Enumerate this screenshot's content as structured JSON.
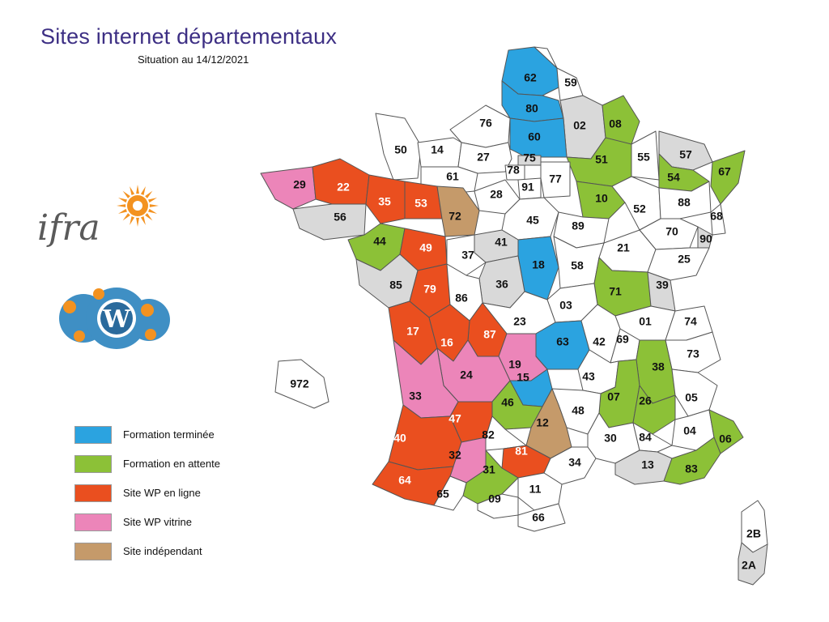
{
  "title": "Sites internet départementaux",
  "subtitle": "Situation au 14/12/2021",
  "colors": {
    "formation_terminee": "#2ba3e0",
    "formation_attente": "#8cc137",
    "site_wp_en_ligne": "#ea4f1f",
    "site_wp_vitrine": "#ec85b9",
    "site_independant": "#c59a6a",
    "unknown_grey": "#d9d9d9",
    "none_white": "#ffffff",
    "title_color": "#3d2f84"
  },
  "legend": [
    {
      "key": "formation_terminee",
      "label": "Formation terminée"
    },
    {
      "key": "formation_attente",
      "label": "Formation en attente"
    },
    {
      "key": "site_wp_en_ligne",
      "label": "Site WP en ligne"
    },
    {
      "key": "site_wp_vitrine",
      "label": "Site WP vitrine"
    },
    {
      "key": "site_independant",
      "label": "Site indépendant"
    }
  ],
  "logos": {
    "ifra": "ifra",
    "ifra_icon": "sun-icon",
    "wordpress_icon": "wordpress-gear-icon"
  },
  "departments": [
    {
      "code": "62",
      "status": "formation_terminee"
    },
    {
      "code": "59",
      "status": "none_white"
    },
    {
      "code": "80",
      "status": "formation_terminee"
    },
    {
      "code": "02",
      "status": "unknown_grey"
    },
    {
      "code": "08",
      "status": "formation_attente"
    },
    {
      "code": "76",
      "status": "none_white"
    },
    {
      "code": "60",
      "status": "formation_terminee"
    },
    {
      "code": "50",
      "status": "none_white"
    },
    {
      "code": "14",
      "status": "none_white"
    },
    {
      "code": "27",
      "status": "none_white"
    },
    {
      "code": "75",
      "status": "unknown_grey"
    },
    {
      "code": "51",
      "status": "formation_attente"
    },
    {
      "code": "55",
      "status": "none_white"
    },
    {
      "code": "57",
      "status": "unknown_grey"
    },
    {
      "code": "67",
      "status": "formation_attente"
    },
    {
      "code": "54",
      "status": "formation_attente"
    },
    {
      "code": "78",
      "status": "none_white"
    },
    {
      "code": "77",
      "status": "none_white"
    },
    {
      "code": "61",
      "status": "none_white"
    },
    {
      "code": "91",
      "status": "none_white"
    },
    {
      "code": "29",
      "status": "site_wp_vitrine"
    },
    {
      "code": "22",
      "status": "site_wp_en_ligne"
    },
    {
      "code": "35",
      "status": "site_wp_en_ligne"
    },
    {
      "code": "53",
      "status": "site_wp_en_ligne"
    },
    {
      "code": "72",
      "status": "site_independant"
    },
    {
      "code": "28",
      "status": "none_white"
    },
    {
      "code": "10",
      "status": "formation_attente"
    },
    {
      "code": "52",
      "status": "none_white"
    },
    {
      "code": "88",
      "status": "none_white"
    },
    {
      "code": "68",
      "status": "none_white"
    },
    {
      "code": "56",
      "status": "unknown_grey"
    },
    {
      "code": "45",
      "status": "none_white"
    },
    {
      "code": "89",
      "status": "none_white"
    },
    {
      "code": "70",
      "status": "none_white"
    },
    {
      "code": "90",
      "status": "unknown_grey"
    },
    {
      "code": "44",
      "status": "formation_attente"
    },
    {
      "code": "49",
      "status": "site_wp_en_ligne"
    },
    {
      "code": "41",
      "status": "unknown_grey"
    },
    {
      "code": "21",
      "status": "none_white"
    },
    {
      "code": "25",
      "status": "none_white"
    },
    {
      "code": "37",
      "status": "none_white"
    },
    {
      "code": "18",
      "status": "formation_terminee"
    },
    {
      "code": "58",
      "status": "none_white"
    },
    {
      "code": "85",
      "status": "unknown_grey"
    },
    {
      "code": "79",
      "status": "site_wp_en_ligne"
    },
    {
      "code": "36",
      "status": "unknown_grey"
    },
    {
      "code": "71",
      "status": "formation_attente"
    },
    {
      "code": "39",
      "status": "unknown_grey"
    },
    {
      "code": "86",
      "status": "none_white"
    },
    {
      "code": "03",
      "status": "none_white"
    },
    {
      "code": "01",
      "status": "none_white"
    },
    {
      "code": "74",
      "status": "none_white"
    },
    {
      "code": "17",
      "status": "site_wp_en_ligne"
    },
    {
      "code": "23",
      "status": "none_white"
    },
    {
      "code": "87",
      "status": "site_wp_en_ligne"
    },
    {
      "code": "16",
      "status": "site_wp_en_ligne"
    },
    {
      "code": "63",
      "status": "formation_terminee"
    },
    {
      "code": "42",
      "status": "none_white"
    },
    {
      "code": "69",
      "status": "none_white"
    },
    {
      "code": "73",
      "status": "none_white"
    },
    {
      "code": "19",
      "status": "site_wp_vitrine"
    },
    {
      "code": "38",
      "status": "formation_attente"
    },
    {
      "code": "24",
      "status": "site_wp_vitrine"
    },
    {
      "code": "15",
      "status": "formation_terminee"
    },
    {
      "code": "43",
      "status": "none_white"
    },
    {
      "code": "33",
      "status": "site_wp_vitrine"
    },
    {
      "code": "07",
      "status": "formation_attente"
    },
    {
      "code": "26",
      "status": "formation_attente"
    },
    {
      "code": "05",
      "status": "none_white"
    },
    {
      "code": "46",
      "status": "formation_attente"
    },
    {
      "code": "48",
      "status": "none_white"
    },
    {
      "code": "47",
      "status": "site_wp_en_ligne"
    },
    {
      "code": "12",
      "status": "site_independant"
    },
    {
      "code": "04",
      "status": "none_white"
    },
    {
      "code": "06",
      "status": "formation_attente"
    },
    {
      "code": "40",
      "status": "site_wp_en_ligne"
    },
    {
      "code": "82",
      "status": "none_white"
    },
    {
      "code": "30",
      "status": "none_white"
    },
    {
      "code": "84",
      "status": "none_white"
    },
    {
      "code": "32",
      "status": "site_wp_vitrine"
    },
    {
      "code": "81",
      "status": "site_wp_en_ligne"
    },
    {
      "code": "13",
      "status": "unknown_grey"
    },
    {
      "code": "83",
      "status": "formation_attente"
    },
    {
      "code": "34",
      "status": "none_white"
    },
    {
      "code": "31",
      "status": "formation_attente"
    },
    {
      "code": "64",
      "status": "site_wp_en_ligne"
    },
    {
      "code": "65",
      "status": "none_white"
    },
    {
      "code": "09",
      "status": "none_white"
    },
    {
      "code": "11",
      "status": "none_white"
    },
    {
      "code": "66",
      "status": "none_white"
    },
    {
      "code": "972",
      "status": "none_white"
    },
    {
      "code": "2B",
      "status": "none_white"
    },
    {
      "code": "2A",
      "status": "unknown_grey"
    }
  ]
}
